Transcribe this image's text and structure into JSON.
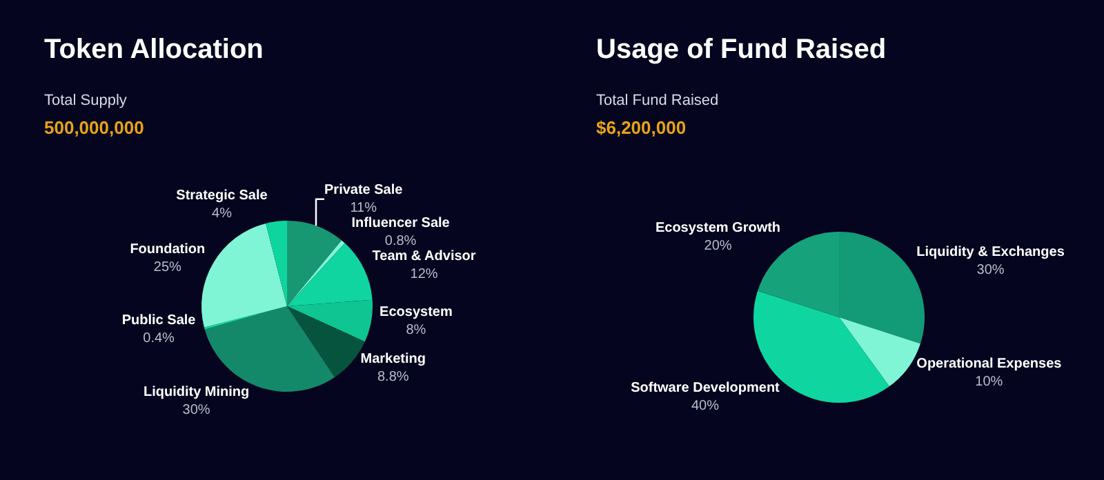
{
  "chart_data": [
    {
      "type": "pie",
      "title": "Token Allocation",
      "subtitle": "Total Supply",
      "annotations": [
        "500,000,000"
      ],
      "categories": [
        "Private Sale",
        "Influencer Sale",
        "Team & Advisor",
        "Ecosystem",
        "Marketing",
        "Liquidity Mining",
        "Public Sale",
        "Foundation",
        "Strategic Sale"
      ],
      "values": [
        11,
        0.8,
        12,
        8,
        8.8,
        30,
        0.4,
        25,
        4
      ],
      "value_labels": [
        "11%",
        "0.8%",
        "12%",
        "8%",
        "8.8%",
        "30%",
        "0.4%",
        "25%",
        "4%"
      ],
      "colors": [
        "#179873",
        "#7ff5d5",
        "#10d5a0",
        "#0fc592",
        "#06543e",
        "#14896a",
        "#0fd6a0",
        "#7ff5d5",
        "#0ed59e"
      ]
    },
    {
      "type": "pie",
      "title": "Usage of Fund Raised",
      "subtitle": "Total Fund Raised",
      "annotations": [
        "$6,200,000"
      ],
      "categories": [
        "Liquidity & Exchanges",
        "Operational Expenses",
        "Software Development",
        "Ecosystem Growth"
      ],
      "values": [
        30,
        10,
        40,
        20
      ],
      "value_labels": [
        "30%",
        "10%",
        "40%",
        "20%"
      ],
      "colors": [
        "#139a76",
        "#7ff5d5",
        "#0fd6a0",
        "#16a37c"
      ]
    }
  ]
}
